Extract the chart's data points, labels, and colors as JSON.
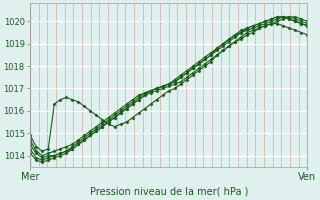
{
  "title": "Pression niveau de la mer( hPa )",
  "xlabel_left": "Mer",
  "xlabel_right": "Ven",
  "ylabel_values": [
    1014,
    1015,
    1016,
    1017,
    1018,
    1019,
    1020
  ],
  "ylim": [
    1013.5,
    1020.8
  ],
  "xlim": [
    0,
    96
  ],
  "background_color": "#dff0ee",
  "grid_color_h": "#ffffff",
  "grid_color_v": "#cc8888",
  "line_color": "#1a5c1a",
  "marker_color": "#1a5c1a",
  "series": [
    [
      1014.5,
      1014.1,
      1013.9,
      1014.0,
      1014.0,
      1014.1,
      1014.2,
      1014.3,
      1014.5,
      1014.7,
      1014.9,
      1015.1,
      1015.3,
      1015.5,
      1015.7,
      1015.9,
      1016.1,
      1016.3,
      1016.5,
      1016.7,
      1016.8,
      1016.9,
      1017.0,
      1017.1,
      1017.2,
      1017.3,
      1017.5,
      1017.7,
      1017.9,
      1018.1,
      1018.3,
      1018.5,
      1018.7,
      1018.9,
      1019.1,
      1019.3,
      1019.5,
      1019.6,
      1019.7,
      1019.8,
      1019.9,
      1020.0,
      1020.1,
      1020.2,
      1020.2,
      1020.1,
      1020.0
    ],
    [
      1014.3,
      1013.9,
      1013.8,
      1013.9,
      1014.0,
      1014.1,
      1014.2,
      1014.4,
      1014.6,
      1014.8,
      1015.0,
      1015.2,
      1015.4,
      1015.6,
      1015.8,
      1016.0,
      1016.2,
      1016.4,
      1016.6,
      1016.8,
      1016.9,
      1017.0,
      1017.1,
      1017.2,
      1017.3,
      1017.5,
      1017.7,
      1017.9,
      1018.1,
      1018.3,
      1018.5,
      1018.7,
      1018.9,
      1019.1,
      1019.3,
      1019.5,
      1019.6,
      1019.7,
      1019.8,
      1019.9,
      1020.0,
      1020.1,
      1020.2,
      1020.2,
      1020.1,
      1020.0,
      1019.9
    ],
    [
      1014.7,
      1014.2,
      1014.0,
      1014.1,
      1014.2,
      1014.3,
      1014.4,
      1014.5,
      1014.7,
      1014.9,
      1015.1,
      1015.3,
      1015.5,
      1015.7,
      1015.9,
      1016.1,
      1016.3,
      1016.5,
      1016.7,
      1016.8,
      1016.9,
      1017.0,
      1017.1,
      1017.2,
      1017.4,
      1017.6,
      1017.8,
      1018.0,
      1018.2,
      1018.4,
      1018.6,
      1018.8,
      1019.0,
      1019.2,
      1019.4,
      1019.5,
      1019.7,
      1019.8,
      1019.9,
      1020.0,
      1020.1,
      1020.2,
      1020.2,
      1020.1,
      1020.0,
      1019.9,
      1019.8
    ],
    [
      1014.1,
      1013.8,
      1013.7,
      1013.8,
      1013.9,
      1014.0,
      1014.1,
      1014.3,
      1014.5,
      1014.7,
      1014.9,
      1015.1,
      1015.3,
      1015.5,
      1015.7,
      1015.9,
      1016.1,
      1016.3,
      1016.5,
      1016.7,
      1016.9,
      1017.0,
      1017.1,
      1017.2,
      1017.3,
      1017.5,
      1017.7,
      1017.9,
      1018.1,
      1018.3,
      1018.5,
      1018.8,
      1019.0,
      1019.2,
      1019.4,
      1019.6,
      1019.7,
      1019.8,
      1019.9,
      1020.0,
      1020.1,
      1020.2,
      1020.2,
      1020.1,
      1020.0,
      1019.9,
      1019.8
    ],
    [
      1014.9,
      1014.4,
      1014.2,
      1014.3,
      1016.3,
      1016.5,
      1016.6,
      1016.5,
      1016.4,
      1016.2,
      1016.0,
      1015.8,
      1015.6,
      1015.4,
      1015.3,
      1015.4,
      1015.5,
      1015.7,
      1015.9,
      1016.1,
      1016.3,
      1016.5,
      1016.7,
      1016.9,
      1017.0,
      1017.2,
      1017.4,
      1017.6,
      1017.8,
      1018.0,
      1018.2,
      1018.5,
      1018.7,
      1018.9,
      1019.1,
      1019.2,
      1019.4,
      1019.5,
      1019.7,
      1019.8,
      1019.9,
      1019.9,
      1019.8,
      1019.7,
      1019.6,
      1019.5,
      1019.4
    ]
  ]
}
